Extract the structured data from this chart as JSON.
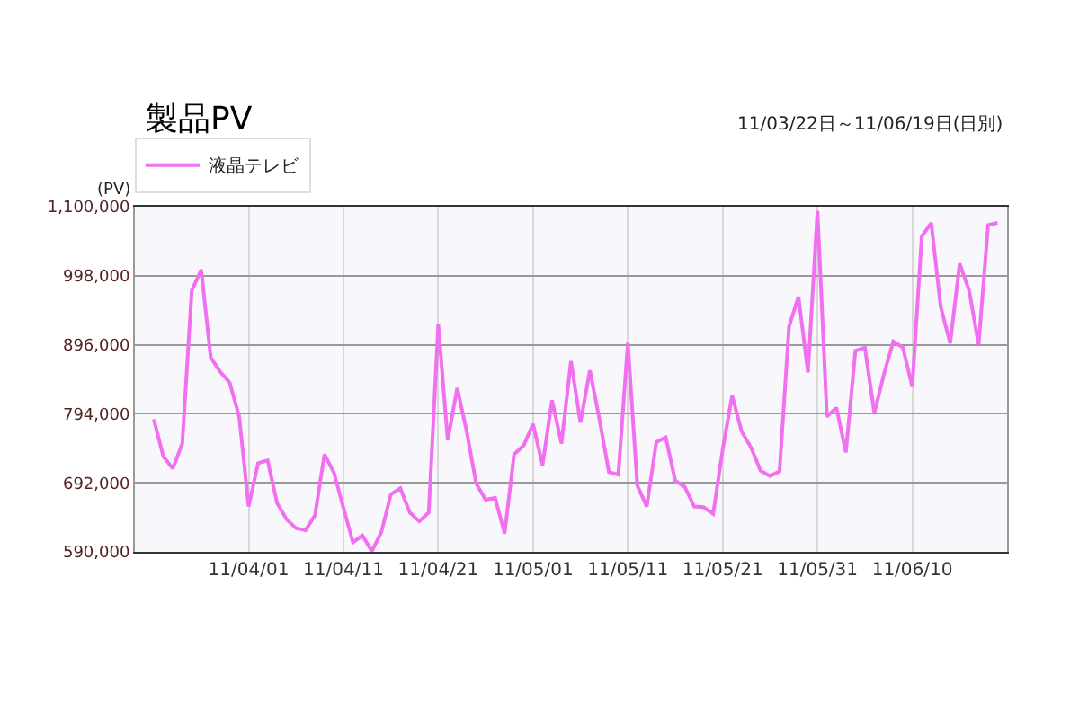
{
  "chart_data": {
    "type": "line",
    "title": "製品PV",
    "subtitle": "11/03/22日～11/06/19日(日別)",
    "ylabel": "(PV)",
    "x": [
      "--03-22",
      "--03-23",
      "--03-24",
      "--03-25",
      "--03-26",
      "--03-27",
      "--03-28",
      "--03-29",
      "--03-30",
      "--03-31",
      "--04-01",
      "--04-02",
      "--04-03",
      "--04-04",
      "--04-05",
      "--04-06",
      "--04-07",
      "--04-08",
      "--04-09",
      "--04-10",
      "--04-11",
      "--04-12",
      "--04-13",
      "--04-14",
      "--04-15",
      "--04-16",
      "--04-17",
      "--04-18",
      "--04-19",
      "--04-20",
      "--04-21",
      "--04-22",
      "--04-23",
      "--04-24",
      "--04-25",
      "--04-26",
      "--04-27",
      "--04-28",
      "--04-29",
      "--04-30",
      "--05-01",
      "--05-02",
      "--05-03",
      "--05-04",
      "--05-05",
      "--05-06",
      "--05-07",
      "--05-08",
      "--05-09",
      "--05-10",
      "--05-11",
      "--05-12",
      "--05-13",
      "--05-14",
      "--05-15",
      "--05-16",
      "--05-17",
      "--05-18",
      "--05-19",
      "--05-20",
      "--05-21",
      "--05-22",
      "--05-23",
      "--05-24",
      "--05-25",
      "--05-26",
      "--05-27",
      "--05-28",
      "--05-29",
      "--05-30",
      "--05-31",
      "--06-01",
      "--06-02",
      "--06-03",
      "--06-04",
      "--06-05",
      "--06-06",
      "--06-07",
      "--06-08",
      "--06-09",
      "--06-10",
      "--06-11",
      "--06-12",
      "--06-13",
      "--06-14",
      "--06-15",
      "--06-16",
      "--06-17",
      "--06-18",
      "--06-19"
    ],
    "series": [
      {
        "name": "液晶テレビ",
        "color": "#f070f0",
        "values": [
          786000,
          731000,
          713000,
          750000,
          976000,
          1007000,
          877000,
          856000,
          840000,
          790000,
          657000,
          721000,
          725000,
          662000,
          638000,
          625000,
          622000,
          644000,
          734000,
          707000,
          655000,
          604000,
          614000,
          591000,
          619000,
          675000,
          684000,
          648000,
          635000,
          648000,
          926000,
          755000,
          832000,
          768000,
          691000,
          667000,
          670000,
          617000,
          734000,
          747000,
          779000,
          718000,
          814000,
          750000,
          872000,
          781000,
          858000,
          786000,
          708000,
          704000,
          899000,
          688000,
          657000,
          752000,
          759000,
          695000,
          686000,
          657000,
          656000,
          646000,
          741000,
          821000,
          768000,
          744000,
          710000,
          702000,
          709000,
          923000,
          967000,
          855000,
          1094000,
          790000,
          803000,
          737000,
          887000,
          892000,
          795000,
          852000,
          901000,
          892000,
          834000,
          1056000,
          1076000,
          952000,
          898000,
          1016000,
          976000,
          896000,
          1073000,
          1076000
        ]
      }
    ],
    "xlim": [
      "--03-20",
      "--06-20"
    ],
    "xticks": [
      {
        "value": "--04-01",
        "label": "11/04/01"
      },
      {
        "value": "--04-11",
        "label": "11/04/11"
      },
      {
        "value": "--04-21",
        "label": "11/04/21"
      },
      {
        "value": "--05-01",
        "label": "11/05/01"
      },
      {
        "value": "--05-11",
        "label": "11/05/11"
      },
      {
        "value": "--05-21",
        "label": "11/05/21"
      },
      {
        "value": "--05-31",
        "label": "11/05/31"
      },
      {
        "value": "--06-10",
        "label": "11/06/10"
      }
    ],
    "ylim": [
      590000,
      1100000
    ],
    "yticks": [
      {
        "value": 590000,
        "label": "590,000"
      },
      {
        "value": 692000,
        "label": "692,000"
      },
      {
        "value": 794000,
        "label": "794,000"
      },
      {
        "value": 896000,
        "label": "896,000"
      },
      {
        "value": 998000,
        "label": "998,000"
      },
      {
        "value": 1100000,
        "label": "1,100,000"
      }
    ],
    "grid": true,
    "legend": "top",
    "marker": "none",
    "line_style": "solid"
  }
}
